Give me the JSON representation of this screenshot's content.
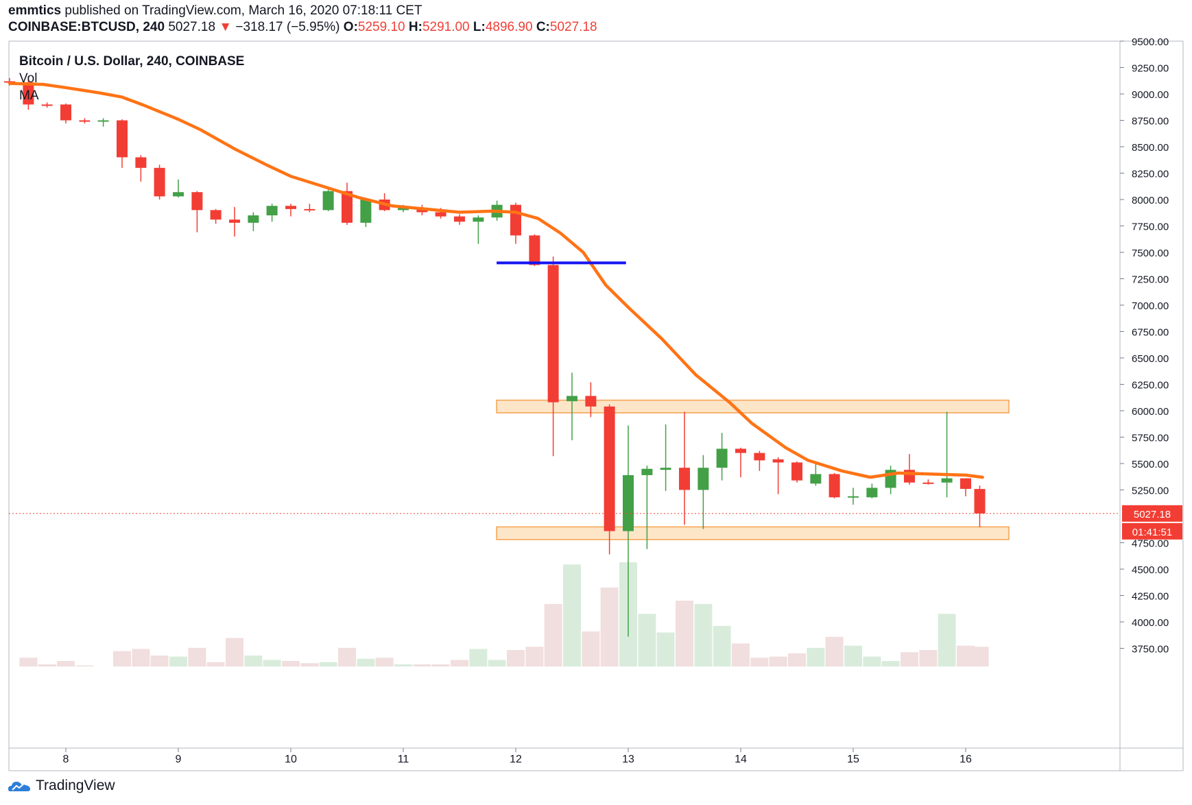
{
  "header": {
    "author": "emmtics",
    "published_text": "published on TradingView.com, March 16, 2020 07:18:11 CET",
    "symbol": "COINBASE:BTCUSD, 240",
    "last": "5027.18",
    "change_arrow": "▼",
    "change": "−318.17 (−5.95%)",
    "o_label": "O:",
    "o_value": "5259.10",
    "h_label": "H:",
    "h_value": "5291.00",
    "l_label": "L:",
    "l_value": "4896.90",
    "c_label": "C:",
    "c_value": "5027.18"
  },
  "legend": {
    "title": "Bitcoin / U.S. Dollar, 240, COINBASE",
    "vol": "Vol",
    "ma": "MA"
  },
  "footer": {
    "brand": "TradingView"
  },
  "colors": {
    "up": "#43a047",
    "down": "#f23d34",
    "ma": "#ff7315",
    "level_line": "#1515f0",
    "zone_fill": "#fde5c8",
    "zone_stroke": "#f5a14d",
    "vol_up": "#d9ecdc",
    "vol_down": "#f1dede"
  },
  "chart_data": {
    "type": "candlestick",
    "title": "Bitcoin / U.S. Dollar, 240, COINBASE",
    "ylim": [
      3500,
      9550
    ],
    "y_ticks": [
      "9500.00",
      "9250.00",
      "9000.00",
      "8750.00",
      "8500.00",
      "8250.00",
      "8000.00",
      "7750.00",
      "7500.00",
      "7250.00",
      "7000.00",
      "6750.00",
      "6500.00",
      "6250.00",
      "6000.00",
      "5750.00",
      "5500.00",
      "5250.00",
      "4750.00",
      "4500.00",
      "4250.00",
      "4000.00",
      "3750.00"
    ],
    "x_ticks": [
      {
        "label": "8",
        "day": 8
      },
      {
        "label": "9",
        "day": 9
      },
      {
        "label": "10",
        "day": 10
      },
      {
        "label": "11",
        "day": 11
      },
      {
        "label": "12",
        "day": 12
      },
      {
        "label": "13",
        "day": 13
      },
      {
        "label": "14",
        "day": 14
      },
      {
        "label": "15",
        "day": 15
      },
      {
        "label": "16",
        "day": 16
      }
    ],
    "candles": [
      {
        "t": 7.5,
        "o": 9120,
        "h": 9150,
        "l": 9080,
        "c": 9110
      },
      {
        "t": 7.667,
        "o": 9110,
        "h": 9170,
        "l": 8850,
        "c": 8900
      },
      {
        "t": 7.833,
        "o": 8900,
        "h": 8920,
        "l": 8870,
        "c": 8890
      },
      {
        "t": 8.0,
        "o": 8900,
        "h": 8910,
        "l": 8720,
        "c": 8750
      },
      {
        "t": 8.167,
        "o": 8750,
        "h": 8770,
        "l": 8720,
        "c": 8740
      },
      {
        "t": 8.333,
        "o": 8740,
        "h": 8770,
        "l": 8690,
        "c": 8750
      },
      {
        "t": 8.5,
        "o": 8750,
        "h": 8760,
        "l": 8300,
        "c": 8400
      },
      {
        "t": 8.667,
        "o": 8400,
        "h": 8420,
        "l": 8170,
        "c": 8300
      },
      {
        "t": 8.833,
        "o": 8300,
        "h": 8330,
        "l": 8000,
        "c": 8030
      },
      {
        "t": 9.0,
        "o": 8030,
        "h": 8190,
        "l": 8020,
        "c": 8070
      },
      {
        "t": 9.167,
        "o": 8070,
        "h": 8080,
        "l": 7690,
        "c": 7900
      },
      {
        "t": 9.333,
        "o": 7900,
        "h": 7910,
        "l": 7770,
        "c": 7810
      },
      {
        "t": 9.5,
        "o": 7810,
        "h": 7930,
        "l": 7650,
        "c": 7780
      },
      {
        "t": 9.667,
        "o": 7780,
        "h": 7880,
        "l": 7700,
        "c": 7850
      },
      {
        "t": 9.833,
        "o": 7850,
        "h": 7960,
        "l": 7790,
        "c": 7940
      },
      {
        "t": 10.0,
        "o": 7940,
        "h": 7960,
        "l": 7840,
        "c": 7910
      },
      {
        "t": 10.167,
        "o": 7910,
        "h": 7960,
        "l": 7880,
        "c": 7900
      },
      {
        "t": 10.333,
        "o": 7900,
        "h": 8110,
        "l": 7890,
        "c": 8080
      },
      {
        "t": 10.5,
        "o": 8080,
        "h": 8160,
        "l": 7760,
        "c": 7780
      },
      {
        "t": 10.667,
        "o": 7780,
        "h": 8010,
        "l": 7740,
        "c": 8000
      },
      {
        "t": 10.833,
        "o": 8000,
        "h": 8060,
        "l": 7890,
        "c": 7900
      },
      {
        "t": 11.0,
        "o": 7900,
        "h": 7950,
        "l": 7880,
        "c": 7920
      },
      {
        "t": 11.167,
        "o": 7920,
        "h": 7950,
        "l": 7850,
        "c": 7880
      },
      {
        "t": 11.333,
        "o": 7880,
        "h": 7920,
        "l": 7820,
        "c": 7840
      },
      {
        "t": 11.5,
        "o": 7840,
        "h": 7860,
        "l": 7760,
        "c": 7790
      },
      {
        "t": 11.667,
        "o": 7790,
        "h": 7850,
        "l": 7580,
        "c": 7830
      },
      {
        "t": 11.833,
        "o": 7830,
        "h": 7990,
        "l": 7800,
        "c": 7950
      },
      {
        "t": 12.0,
        "o": 7950,
        "h": 7970,
        "l": 7580,
        "c": 7660
      },
      {
        "t": 12.167,
        "o": 7660,
        "h": 7670,
        "l": 7370,
        "c": 7380
      },
      {
        "t": 12.333,
        "o": 7380,
        "h": 7460,
        "l": 5570,
        "c": 6080
      },
      {
        "t": 12.5,
        "o": 6090,
        "h": 6360,
        "l": 5720,
        "c": 6140
      },
      {
        "t": 12.667,
        "o": 6140,
        "h": 6270,
        "l": 5940,
        "c": 6040
      },
      {
        "t": 12.833,
        "o": 6040,
        "h": 6060,
        "l": 4640,
        "c": 4860
      },
      {
        "t": 13.0,
        "o": 4860,
        "h": 5860,
        "l": 3860,
        "c": 5390
      },
      {
        "t": 13.167,
        "o": 5390,
        "h": 5480,
        "l": 4690,
        "c": 5450
      },
      {
        "t": 13.333,
        "o": 5440,
        "h": 5870,
        "l": 5240,
        "c": 5460
      },
      {
        "t": 13.5,
        "o": 5460,
        "h": 5990,
        "l": 4920,
        "c": 5250
      },
      {
        "t": 13.667,
        "o": 5250,
        "h": 5580,
        "l": 4880,
        "c": 5460
      },
      {
        "t": 13.833,
        "o": 5460,
        "h": 5790,
        "l": 5340,
        "c": 5640
      },
      {
        "t": 14.0,
        "o": 5640,
        "h": 5650,
        "l": 5370,
        "c": 5600
      },
      {
        "t": 14.167,
        "o": 5600,
        "h": 5620,
        "l": 5430,
        "c": 5530
      },
      {
        "t": 14.333,
        "o": 5540,
        "h": 5560,
        "l": 5210,
        "c": 5510
      },
      {
        "t": 14.5,
        "o": 5510,
        "h": 5520,
        "l": 5320,
        "c": 5340
      },
      {
        "t": 14.667,
        "o": 5310,
        "h": 5520,
        "l": 5290,
        "c": 5400
      },
      {
        "t": 14.833,
        "o": 5400,
        "h": 5410,
        "l": 5170,
        "c": 5180
      },
      {
        "t": 15.0,
        "o": 5180,
        "h": 5270,
        "l": 5110,
        "c": 5190
      },
      {
        "t": 15.167,
        "o": 5180,
        "h": 5310,
        "l": 5170,
        "c": 5270
      },
      {
        "t": 15.333,
        "o": 5270,
        "h": 5480,
        "l": 5210,
        "c": 5440
      },
      {
        "t": 15.5,
        "o": 5440,
        "h": 5590,
        "l": 5300,
        "c": 5320
      },
      {
        "t": 15.667,
        "o": 5320,
        "h": 5350,
        "l": 5300,
        "c": 5310
      },
      {
        "t": 15.833,
        "o": 5320,
        "h": 5990,
        "l": 5180,
        "c": 5360
      },
      {
        "t": 16.0,
        "o": 5360,
        "h": 5360,
        "l": 5190,
        "c": 5260
      },
      {
        "t": 16.125,
        "o": 5259.1,
        "h": 5291,
        "l": 4896.9,
        "c": 5027.18
      }
    ],
    "volume": [
      {
        "t": 7.667,
        "v": 0.08,
        "up": false
      },
      {
        "t": 7.833,
        "v": 0.02,
        "up": false
      },
      {
        "t": 8.0,
        "v": 0.05,
        "up": false
      },
      {
        "t": 8.167,
        "v": 0.01,
        "up": false
      },
      {
        "t": 8.5,
        "v": 0.14,
        "up": false
      },
      {
        "t": 8.667,
        "v": 0.16,
        "up": false
      },
      {
        "t": 8.833,
        "v": 0.1,
        "up": false
      },
      {
        "t": 9.0,
        "v": 0.09,
        "up": true
      },
      {
        "t": 9.167,
        "v": 0.17,
        "up": false
      },
      {
        "t": 9.333,
        "v": 0.04,
        "up": false
      },
      {
        "t": 9.5,
        "v": 0.26,
        "up": false
      },
      {
        "t": 9.667,
        "v": 0.1,
        "up": true
      },
      {
        "t": 9.833,
        "v": 0.06,
        "up": true
      },
      {
        "t": 10.0,
        "v": 0.05,
        "up": false
      },
      {
        "t": 10.167,
        "v": 0.03,
        "up": false
      },
      {
        "t": 10.333,
        "v": 0.04,
        "up": true
      },
      {
        "t": 10.5,
        "v": 0.17,
        "up": false
      },
      {
        "t": 10.667,
        "v": 0.07,
        "up": true
      },
      {
        "t": 10.833,
        "v": 0.08,
        "up": false
      },
      {
        "t": 11.0,
        "v": 0.02,
        "up": true
      },
      {
        "t": 11.167,
        "v": 0.02,
        "up": false
      },
      {
        "t": 11.333,
        "v": 0.02,
        "up": false
      },
      {
        "t": 11.5,
        "v": 0.06,
        "up": false
      },
      {
        "t": 11.667,
        "v": 0.16,
        "up": true
      },
      {
        "t": 11.833,
        "v": 0.06,
        "up": true
      },
      {
        "t": 12.0,
        "v": 0.15,
        "up": false
      },
      {
        "t": 12.167,
        "v": 0.18,
        "up": false
      },
      {
        "t": 12.333,
        "v": 0.57,
        "up": false
      },
      {
        "t": 12.5,
        "v": 0.93,
        "up": true
      },
      {
        "t": 12.667,
        "v": 0.32,
        "up": false
      },
      {
        "t": 12.833,
        "v": 0.72,
        "up": false
      },
      {
        "t": 13.0,
        "v": 0.95,
        "up": true
      },
      {
        "t": 13.167,
        "v": 0.48,
        "up": true
      },
      {
        "t": 13.333,
        "v": 0.31,
        "up": true
      },
      {
        "t": 13.5,
        "v": 0.6,
        "up": false
      },
      {
        "t": 13.667,
        "v": 0.57,
        "up": true
      },
      {
        "t": 13.833,
        "v": 0.37,
        "up": true
      },
      {
        "t": 14.0,
        "v": 0.21,
        "up": false
      },
      {
        "t": 14.167,
        "v": 0.08,
        "up": false
      },
      {
        "t": 14.333,
        "v": 0.09,
        "up": false
      },
      {
        "t": 14.5,
        "v": 0.12,
        "up": false
      },
      {
        "t": 14.667,
        "v": 0.17,
        "up": true
      },
      {
        "t": 14.833,
        "v": 0.27,
        "up": false
      },
      {
        "t": 15.0,
        "v": 0.19,
        "up": true
      },
      {
        "t": 15.167,
        "v": 0.09,
        "up": true
      },
      {
        "t": 15.333,
        "v": 0.05,
        "up": true
      },
      {
        "t": 15.5,
        "v": 0.13,
        "up": false
      },
      {
        "t": 15.667,
        "v": 0.15,
        "up": false
      },
      {
        "t": 15.833,
        "v": 0.48,
        "up": true
      },
      {
        "t": 16.0,
        "v": 0.19,
        "up": false
      },
      {
        "t": 16.125,
        "v": 0.18,
        "up": false
      }
    ],
    "ma": [
      {
        "t": 7.5,
        "y": 9100
      },
      {
        "t": 7.8,
        "y": 9090
      },
      {
        "t": 8.0,
        "y": 9060
      },
      {
        "t": 8.3,
        "y": 9010
      },
      {
        "t": 8.5,
        "y": 8970
      },
      {
        "t": 8.7,
        "y": 8890
      },
      {
        "t": 9.0,
        "y": 8760
      },
      {
        "t": 9.2,
        "y": 8660
      },
      {
        "t": 9.5,
        "y": 8480
      },
      {
        "t": 9.8,
        "y": 8320
      },
      {
        "t": 10.0,
        "y": 8220
      },
      {
        "t": 10.3,
        "y": 8120
      },
      {
        "t": 10.6,
        "y": 8020
      },
      {
        "t": 10.9,
        "y": 7940
      },
      {
        "t": 11.2,
        "y": 7910
      },
      {
        "t": 11.5,
        "y": 7880
      },
      {
        "t": 11.8,
        "y": 7890
      },
      {
        "t": 12.0,
        "y": 7880
      },
      {
        "t": 12.2,
        "y": 7820
      },
      {
        "t": 12.4,
        "y": 7680
      },
      {
        "t": 12.6,
        "y": 7500
      },
      {
        "t": 12.8,
        "y": 7190
      },
      {
        "t": 13.0,
        "y": 6980
      },
      {
        "t": 13.3,
        "y": 6680
      },
      {
        "t": 13.6,
        "y": 6340
      },
      {
        "t": 13.9,
        "y": 6080
      },
      {
        "t": 14.1,
        "y": 5880
      },
      {
        "t": 14.4,
        "y": 5650
      },
      {
        "t": 14.6,
        "y": 5530
      },
      {
        "t": 14.9,
        "y": 5430
      },
      {
        "t": 15.15,
        "y": 5370
      },
      {
        "t": 15.4,
        "y": 5410
      },
      {
        "t": 15.7,
        "y": 5400
      },
      {
        "t": 16.0,
        "y": 5390
      },
      {
        "t": 16.15,
        "y": 5370
      }
    ],
    "level_line": {
      "y": 7400,
      "t_start": 11.83,
      "t_end": 12.98
    },
    "zones": [
      {
        "y_low": 5980,
        "y_high": 6100,
        "t_start": 11.83
      },
      {
        "y_low": 4780,
        "y_high": 4900,
        "t_start": 11.83
      }
    ],
    "last_price": 5027.18,
    "last_price_label": "5027.18",
    "countdown_label": "01:41:51"
  }
}
